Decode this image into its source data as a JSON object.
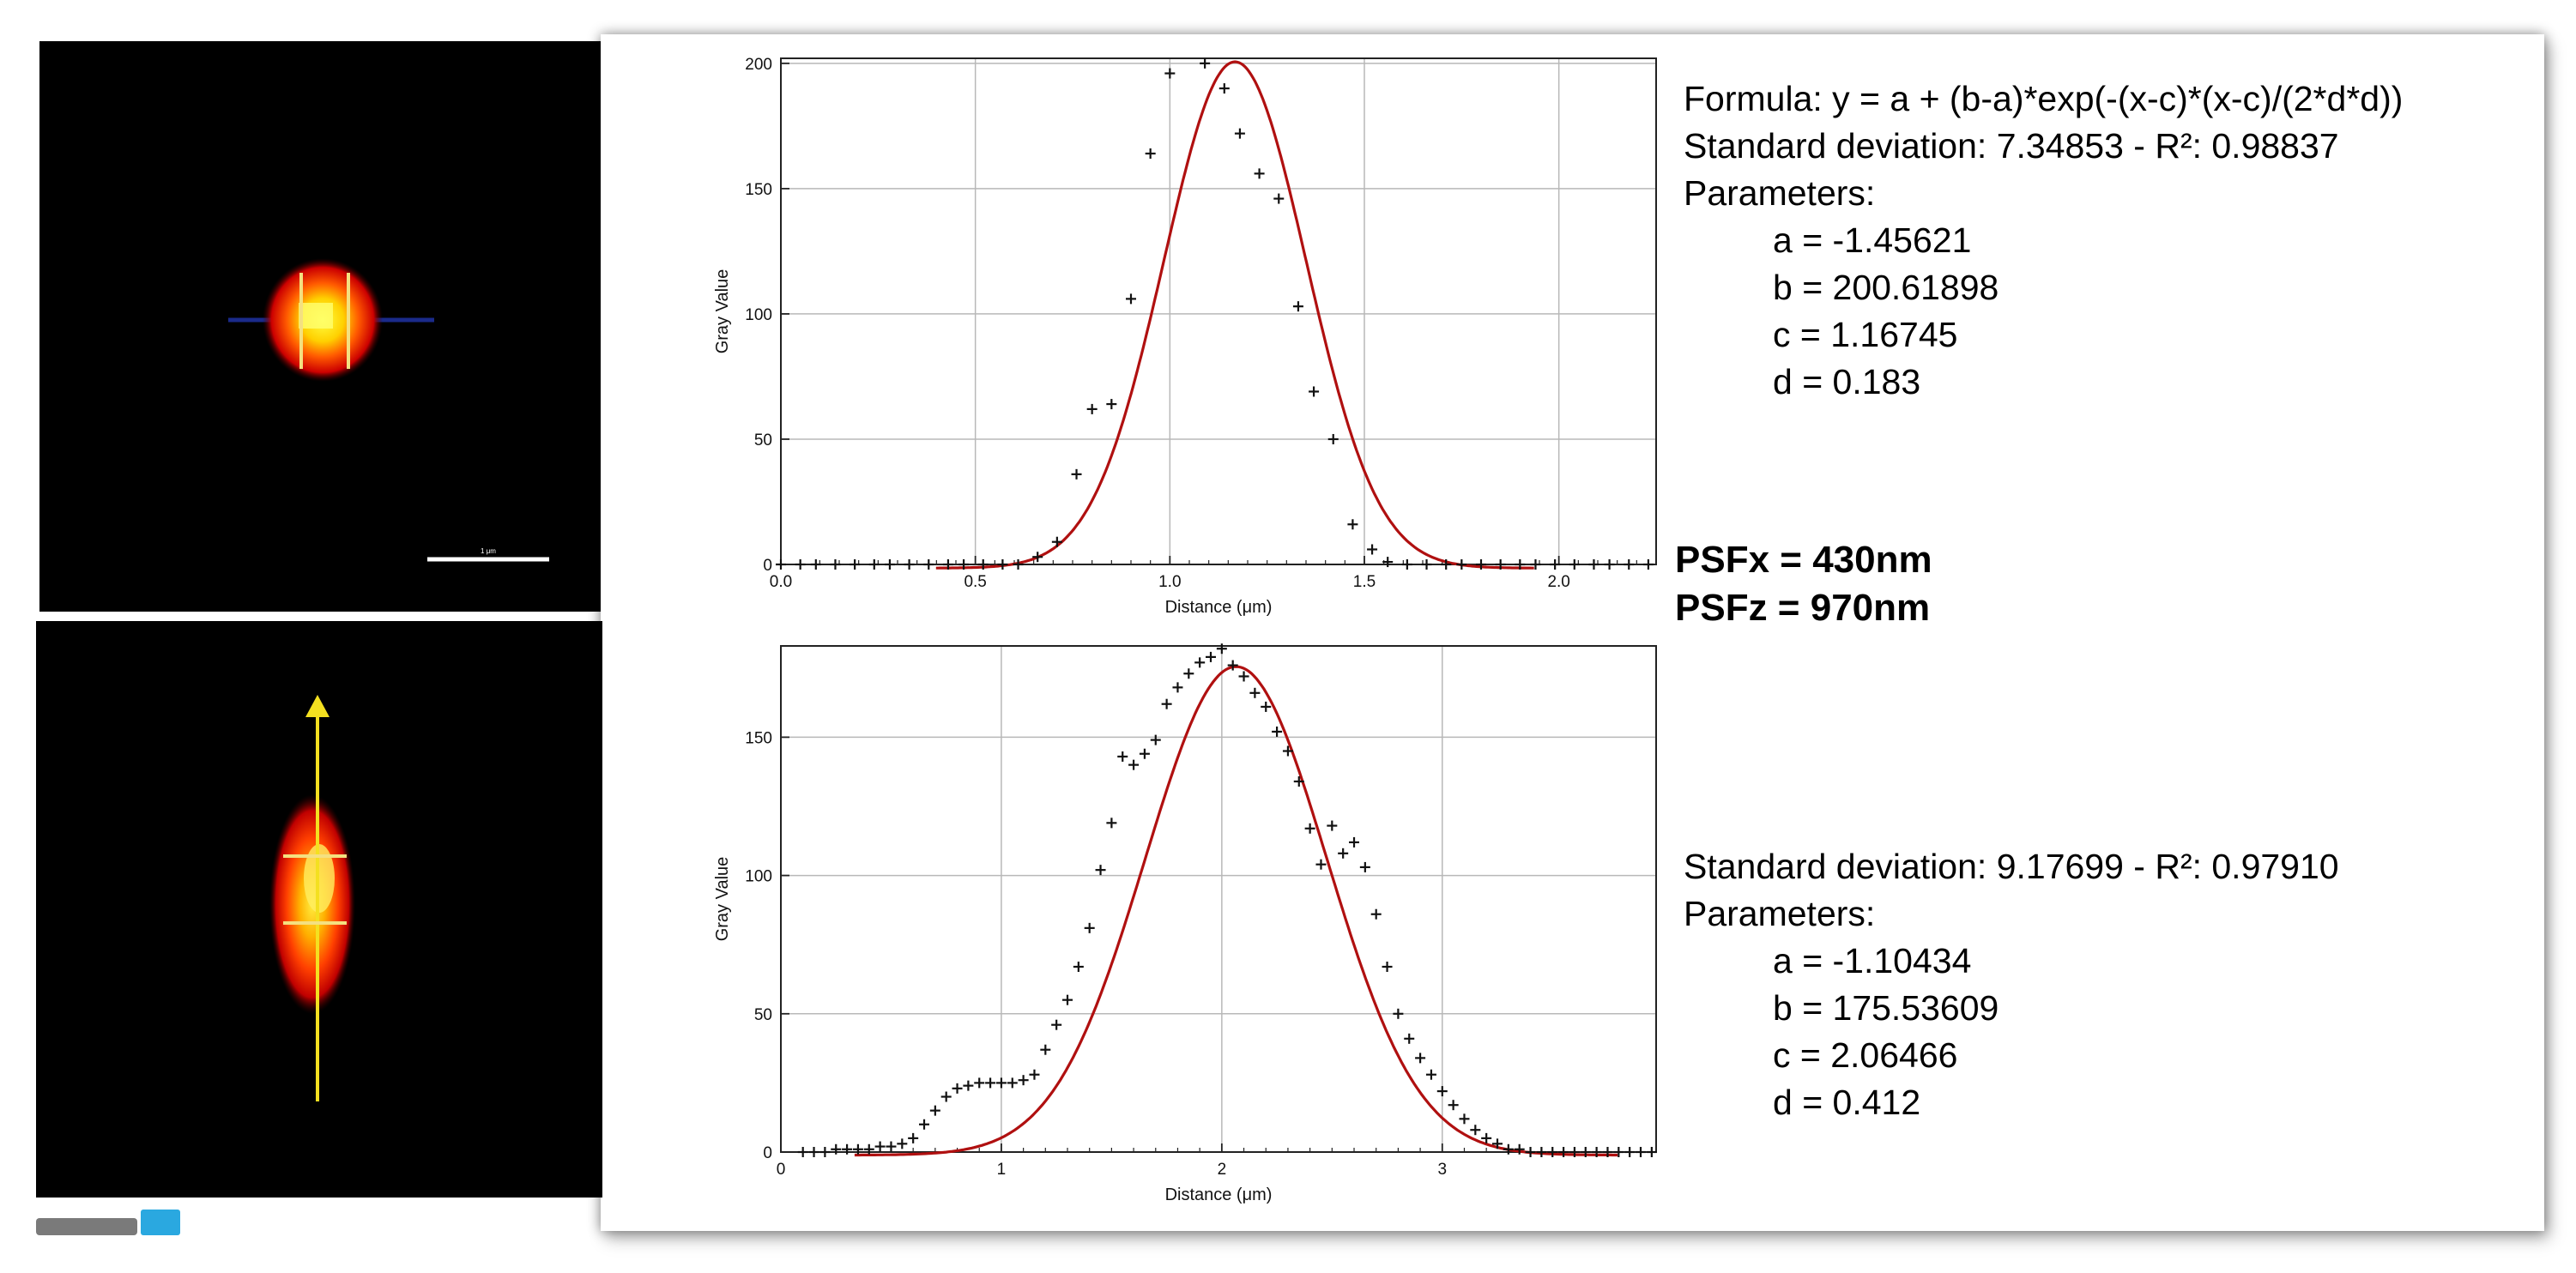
{
  "micro_top": {
    "scale_label": "1 μm"
  },
  "psf": {
    "x_label": "PSFx = 430nm",
    "z_label": "PSFz = 970nm"
  },
  "info_top": {
    "formula": "Formula: y = a + (b-a)*exp(-(x-c)*(x-c)/(2*d*d))",
    "stats": "Standard deviation: 7.34853 - R²: 0.98837",
    "params_title": "Parameters:",
    "params": [
      "a = -1.45621",
      "b = 200.61898",
      "c = 1.16745",
      "d = 0.183"
    ]
  },
  "info_bottom": {
    "stats": "Standard deviation: 9.17699 - R²: 0.97910",
    "params_title": "Parameters:",
    "params": [
      "a = -1.10434",
      "b = 175.53609",
      "c = 2.06466",
      "d = 0.412"
    ]
  },
  "chart_data": [
    {
      "type": "scatter",
      "xlabel": "Distance (μm)",
      "ylabel": "Gray Value",
      "xlim": [
        0,
        2.25
      ],
      "ylim": [
        0,
        202
      ],
      "xticks": [
        0,
        0.5,
        1,
        1.5,
        2
      ],
      "xtick_labels": [
        "0.0",
        "0.5",
        "1.0",
        "1.5",
        "2.0"
      ],
      "yticks": [
        0,
        50,
        100,
        150,
        200
      ],
      "grid": true,
      "fit": {
        "a": -1.45621,
        "b": 200.61898,
        "c": 1.16745,
        "d": 0.183,
        "color": "#b01010"
      },
      "points": [
        [
          0.0,
          0
        ],
        [
          0.05,
          0
        ],
        [
          0.09,
          0
        ],
        [
          0.14,
          0
        ],
        [
          0.19,
          0
        ],
        [
          0.24,
          0
        ],
        [
          0.28,
          0
        ],
        [
          0.33,
          0
        ],
        [
          0.38,
          0
        ],
        [
          0.43,
          0
        ],
        [
          0.47,
          0
        ],
        [
          0.52,
          0
        ],
        [
          0.57,
          0
        ],
        [
          0.61,
          0
        ],
        [
          0.66,
          3
        ],
        [
          0.71,
          9
        ],
        [
          0.76,
          36
        ],
        [
          0.8,
          62
        ],
        [
          0.85,
          64
        ],
        [
          0.9,
          106
        ],
        [
          0.95,
          164
        ],
        [
          1.0,
          196
        ],
        [
          1.09,
          200
        ],
        [
          1.14,
          190
        ],
        [
          1.18,
          172
        ],
        [
          1.23,
          156
        ],
        [
          1.28,
          146
        ],
        [
          1.33,
          103
        ],
        [
          1.37,
          69
        ],
        [
          1.42,
          50
        ],
        [
          1.47,
          16
        ],
        [
          1.52,
          6
        ],
        [
          1.56,
          1
        ],
        [
          1.61,
          0
        ],
        [
          1.66,
          0
        ],
        [
          1.71,
          0
        ],
        [
          1.75,
          0
        ],
        [
          1.8,
          0
        ],
        [
          1.85,
          0
        ],
        [
          1.9,
          0
        ],
        [
          1.94,
          0
        ],
        [
          1.99,
          0
        ],
        [
          2.04,
          0
        ],
        [
          2.09,
          0
        ],
        [
          2.13,
          0
        ],
        [
          2.18,
          0
        ],
        [
          2.23,
          0
        ]
      ]
    },
    {
      "type": "scatter",
      "xlabel": "Distance (μm)",
      "ylabel": "Gray Value",
      "xlim": [
        0,
        3.97
      ],
      "ylim": [
        0,
        183
      ],
      "xticks": [
        0,
        1,
        2,
        3
      ],
      "xtick_labels": [
        "0",
        "1",
        "2",
        "3"
      ],
      "yticks": [
        0,
        50,
        100,
        150
      ],
      "grid": true,
      "fit": {
        "a": -1.10434,
        "b": 175.53609,
        "c": 2.06466,
        "d": 0.412,
        "color": "#b01010"
      },
      "points": [
        [
          0.1,
          0
        ],
        [
          0.15,
          0
        ],
        [
          0.2,
          0
        ],
        [
          0.25,
          1
        ],
        [
          0.3,
          1
        ],
        [
          0.35,
          1
        ],
        [
          0.4,
          1
        ],
        [
          0.45,
          2
        ],
        [
          0.5,
          2
        ],
        [
          0.55,
          3
        ],
        [
          0.6,
          5
        ],
        [
          0.65,
          10
        ],
        [
          0.7,
          15
        ],
        [
          0.75,
          20
        ],
        [
          0.8,
          23
        ],
        [
          0.85,
          24
        ],
        [
          0.9,
          25
        ],
        [
          0.95,
          25
        ],
        [
          1.0,
          25
        ],
        [
          1.05,
          25
        ],
        [
          1.1,
          26
        ],
        [
          1.15,
          28
        ],
        [
          1.2,
          37
        ],
        [
          1.25,
          46
        ],
        [
          1.3,
          55
        ],
        [
          1.35,
          67
        ],
        [
          1.4,
          81
        ],
        [
          1.45,
          102
        ],
        [
          1.5,
          119
        ],
        [
          1.55,
          143
        ],
        [
          1.6,
          140
        ],
        [
          1.65,
          144
        ],
        [
          1.7,
          149
        ],
        [
          1.75,
          162
        ],
        [
          1.8,
          168
        ],
        [
          1.85,
          173
        ],
        [
          1.9,
          177
        ],
        [
          1.95,
          179
        ],
        [
          2.0,
          182
        ],
        [
          2.05,
          176
        ],
        [
          2.1,
          172
        ],
        [
          2.15,
          166
        ],
        [
          2.2,
          161
        ],
        [
          2.25,
          152
        ],
        [
          2.3,
          145
        ],
        [
          2.35,
          134
        ],
        [
          2.4,
          117
        ],
        [
          2.45,
          104
        ],
        [
          2.5,
          118
        ],
        [
          2.55,
          108
        ],
        [
          2.6,
          112
        ],
        [
          2.65,
          103
        ],
        [
          2.7,
          86
        ],
        [
          2.75,
          67
        ],
        [
          2.8,
          50
        ],
        [
          2.85,
          41
        ],
        [
          2.9,
          34
        ],
        [
          2.95,
          28
        ],
        [
          3.0,
          22
        ],
        [
          3.05,
          17
        ],
        [
          3.1,
          12
        ],
        [
          3.15,
          8
        ],
        [
          3.2,
          5
        ],
        [
          3.25,
          3
        ],
        [
          3.3,
          1
        ],
        [
          3.35,
          1
        ],
        [
          3.4,
          0
        ],
        [
          3.45,
          0
        ],
        [
          3.5,
          0
        ],
        [
          3.55,
          0
        ],
        [
          3.6,
          0
        ],
        [
          3.65,
          0
        ],
        [
          3.7,
          0
        ],
        [
          3.75,
          0
        ],
        [
          3.8,
          0
        ],
        [
          3.85,
          0
        ],
        [
          3.9,
          0
        ],
        [
          3.95,
          0
        ]
      ]
    }
  ]
}
